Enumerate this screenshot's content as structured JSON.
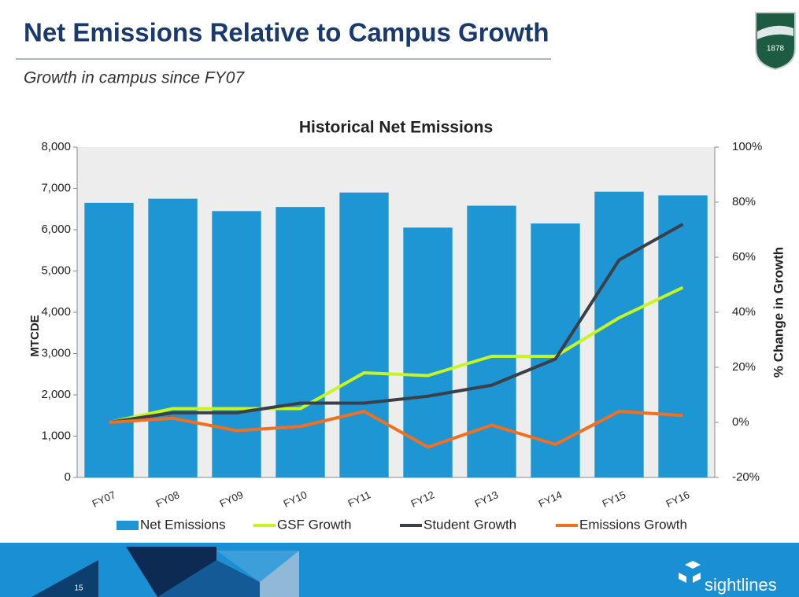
{
  "title": "Net Emissions Relative to Campus Growth",
  "subtitle": "Growth in campus since FY07",
  "logo_text": "1878",
  "page_number": "15",
  "brand": "sightlines",
  "chart_data": {
    "type": "bar",
    "title": "Historical Net Emissions",
    "y_label": "MTCDE",
    "y2_label": "% Change in Growth",
    "categories": [
      "FY07",
      "FY08",
      "FY09",
      "FY10",
      "FY11",
      "FY12",
      "FY13",
      "FY14",
      "FY15",
      "FY16"
    ],
    "series": [
      {
        "name": "Net Emissions",
        "type": "bar",
        "color": "#1e96d3",
        "values": [
          6650,
          6750,
          6450,
          6550,
          6900,
          6050,
          6580,
          6150,
          6920,
          6830
        ]
      },
      {
        "name": "GSF Growth",
        "type": "line",
        "axis": "y2",
        "color": "#c6f51f",
        "values": [
          0,
          5,
          5,
          5,
          18,
          17,
          24,
          24,
          38,
          49
        ]
      },
      {
        "name": "Student Growth",
        "type": "line",
        "axis": "y2",
        "color": "#3a3f4a",
        "values": [
          0,
          3.5,
          3.5,
          7,
          7,
          9.5,
          13.5,
          23,
          59,
          72
        ]
      },
      {
        "name": "Emissions Growth",
        "type": "line",
        "axis": "y2",
        "color": "#f07020",
        "values": [
          0,
          1.5,
          -3,
          -1.5,
          4,
          -9,
          -1,
          -8,
          4,
          2.5
        ]
      }
    ],
    "ylim": [
      0,
      8000
    ],
    "yticks": [
      {
        "value": 0,
        "label": "0"
      },
      {
        "value": 1000,
        "label": "1,000"
      },
      {
        "value": 2000,
        "label": "2,000"
      },
      {
        "value": 3000,
        "label": "3,000"
      },
      {
        "value": 4000,
        "label": "4,000"
      },
      {
        "value": 5000,
        "label": "5,000"
      },
      {
        "value": 6000,
        "label": "6,000"
      },
      {
        "value": 7000,
        "label": "7,000"
      },
      {
        "value": 8000,
        "label": "8,000"
      }
    ],
    "y2lim": [
      -20,
      100
    ],
    "y2ticks": [
      {
        "value": -20,
        "label": "-20%"
      },
      {
        "value": 0,
        "label": "0%"
      },
      {
        "value": 20,
        "label": "20%"
      },
      {
        "value": 40,
        "label": "40%"
      },
      {
        "value": 60,
        "label": "60%"
      },
      {
        "value": 80,
        "label": "80%"
      },
      {
        "value": 100,
        "label": "100%"
      }
    ],
    "legend": "bottom"
  }
}
